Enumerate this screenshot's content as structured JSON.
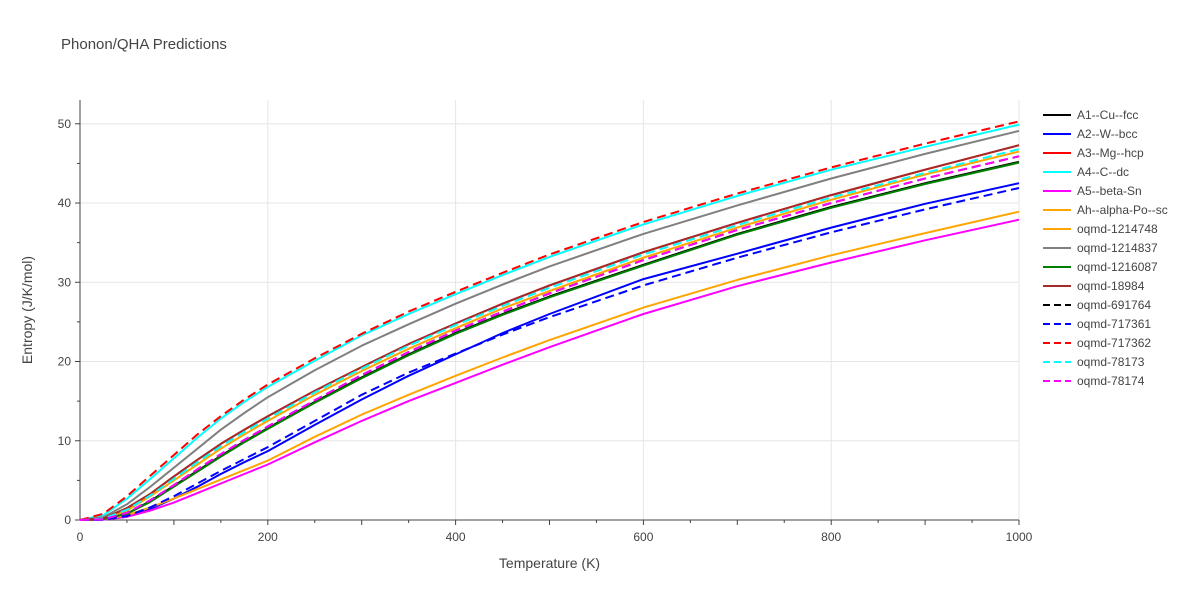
{
  "chart_data": {
    "type": "line",
    "title": "Phonon/QHA Predictions",
    "xlabel": "Temperature (K)",
    "ylabel": "Entropy (J/K/mol)",
    "xlim": [
      0,
      1000
    ],
    "ylim": [
      0,
      53
    ],
    "xticks": [
      0,
      200,
      400,
      600,
      800,
      1000
    ],
    "yticks": [
      0,
      10,
      20,
      30,
      40,
      50
    ],
    "grid": true,
    "legend_position": "right",
    "x": [
      0,
      25,
      50,
      75,
      100,
      125,
      150,
      175,
      200,
      250,
      300,
      350,
      400,
      450,
      500,
      600,
      700,
      800,
      900,
      1000
    ],
    "series": [
      {
        "name": "A1--Cu--fcc",
        "color": "#000000",
        "dash": "solid",
        "values": [
          0,
          0.1,
          0.8,
          2.4,
          4.3,
          6.2,
          8.1,
          9.9,
          11.6,
          14.9,
          18.0,
          20.9,
          23.6,
          26.0,
          28.2,
          32.2,
          36.1,
          39.5,
          42.5,
          45.2
        ]
      },
      {
        "name": "A2--W--bcc",
        "color": "#0000ff",
        "dash": "solid",
        "values": [
          0,
          0.05,
          0.4,
          1.4,
          2.7,
          4.2,
          5.8,
          7.3,
          8.7,
          12.0,
          15.2,
          18.2,
          20.9,
          23.6,
          26.0,
          30.4,
          33.6,
          36.9,
          39.9,
          42.5
        ]
      },
      {
        "name": "A3--Mg--hcp",
        "color": "#ff0000",
        "dash": "solid",
        "values": [
          0,
          0.2,
          1.5,
          3.3,
          5.5,
          7.6,
          9.6,
          11.4,
          13.1,
          16.3,
          19.3,
          22.2,
          24.8,
          27.3,
          29.6,
          33.8,
          37.5,
          41.0,
          44.2,
          47.3
        ]
      },
      {
        "name": "A4--C--dc",
        "color": "#00ffff",
        "dash": "solid",
        "values": [
          0,
          0.6,
          2.7,
          5.2,
          7.8,
          10.4,
          12.8,
          14.9,
          16.8,
          20.1,
          23.3,
          26.0,
          28.5,
          30.9,
          33.2,
          37.3,
          40.9,
          44.2,
          47.1,
          49.9
        ]
      },
      {
        "name": "A5--beta-Sn",
        "color": "#ff00ff",
        "dash": "solid",
        "values": [
          0,
          0.05,
          0.4,
          1.2,
          2.2,
          3.4,
          4.6,
          5.8,
          7.0,
          9.8,
          12.5,
          15.0,
          17.3,
          19.6,
          21.8,
          26.0,
          29.5,
          32.5,
          35.3,
          37.9
        ]
      },
      {
        "name": "Ah--alpha-Po--sc",
        "color": "#ffa500",
        "dash": "solid",
        "values": [
          0,
          0.08,
          0.6,
          1.6,
          2.7,
          3.9,
          5.1,
          6.3,
          7.5,
          10.5,
          13.3,
          15.8,
          18.2,
          20.5,
          22.7,
          26.8,
          30.3,
          33.4,
          36.2,
          38.9
        ]
      },
      {
        "name": "oqmd-1214748",
        "color": "#ffa500",
        "dash": "solid",
        "values": [
          0,
          0.15,
          1.2,
          3.0,
          5.0,
          7.0,
          9.0,
          10.8,
          12.5,
          15.8,
          18.8,
          21.6,
          24.2,
          26.7,
          28.9,
          33.1,
          36.9,
          40.4,
          43.6,
          46.5
        ]
      },
      {
        "name": "oqmd-1214837",
        "color": "#808080",
        "dash": "solid",
        "values": [
          0,
          0.35,
          2.0,
          4.2,
          6.6,
          9.0,
          11.4,
          13.5,
          15.5,
          18.9,
          22.0,
          24.7,
          27.3,
          29.7,
          32.0,
          36.1,
          39.7,
          43.1,
          46.2,
          49.1
        ]
      },
      {
        "name": "oqmd-1216087",
        "color": "#008000",
        "dash": "solid",
        "values": [
          0,
          0.1,
          0.8,
          2.3,
          4.2,
          6.1,
          8.0,
          9.8,
          11.5,
          14.8,
          17.9,
          20.8,
          23.5,
          25.9,
          28.1,
          32.1,
          36.0,
          39.4,
          42.4,
          45.1
        ]
      },
      {
        "name": "oqmd-18984",
        "color": "#a52a2a",
        "dash": "solid",
        "values": [
          0,
          0.2,
          1.5,
          3.3,
          5.5,
          7.6,
          9.6,
          11.4,
          13.1,
          16.3,
          19.3,
          22.2,
          24.8,
          27.3,
          29.6,
          33.8,
          37.5,
          41.0,
          44.2,
          47.3
        ]
      },
      {
        "name": "oqmd-691764",
        "color": "#000000",
        "dash": "dash",
        "values": [
          0,
          0.1,
          0.9,
          2.5,
          4.4,
          6.4,
          8.3,
          10.1,
          11.8,
          15.1,
          18.3,
          21.2,
          23.9,
          26.3,
          28.6,
          32.8,
          36.6,
          40.0,
          43.1,
          45.9
        ]
      },
      {
        "name": "oqmd-717361",
        "color": "#0000ff",
        "dash": "dash",
        "values": [
          0,
          0.05,
          0.5,
          1.6,
          3.0,
          4.6,
          6.2,
          7.7,
          9.2,
          12.5,
          15.8,
          18.6,
          21.0,
          23.4,
          25.6,
          29.6,
          33.1,
          36.3,
          39.2,
          41.9
        ]
      },
      {
        "name": "oqmd-717362",
        "color": "#ff0000",
        "dash": "dash",
        "values": [
          0,
          0.8,
          3.0,
          5.6,
          8.2,
          10.8,
          13.1,
          15.2,
          17.1,
          20.4,
          23.5,
          26.3,
          28.8,
          31.2,
          33.5,
          37.6,
          41.2,
          44.5,
          47.5,
          50.3
        ]
      },
      {
        "name": "oqmd-78173",
        "color": "#00ffff",
        "dash": "dash",
        "values": [
          0,
          0.18,
          1.3,
          3.1,
          5.2,
          7.3,
          9.3,
          11.1,
          12.8,
          16.1,
          19.1,
          22.0,
          24.6,
          27.0,
          29.3,
          33.5,
          37.2,
          40.7,
          43.8,
          46.8
        ]
      },
      {
        "name": "oqmd-78174",
        "color": "#ff00ff",
        "dash": "dash",
        "values": [
          0,
          0.1,
          0.9,
          2.5,
          4.4,
          6.4,
          8.3,
          10.1,
          11.8,
          15.1,
          18.3,
          21.2,
          23.9,
          26.3,
          28.6,
          32.8,
          36.6,
          40.0,
          43.1,
          45.9
        ]
      }
    ]
  }
}
